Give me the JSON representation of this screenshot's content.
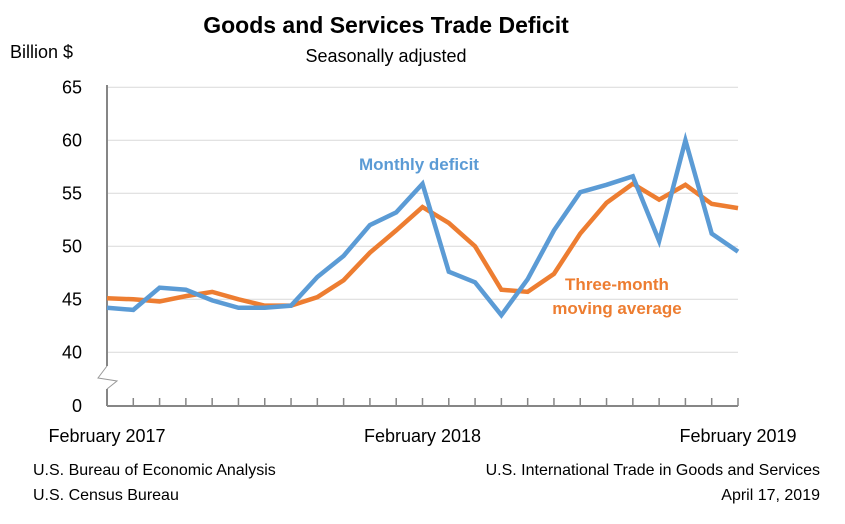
{
  "chart_data": {
    "type": "line",
    "title": "Goods and Services Trade Deficit",
    "subtitle": "Seasonally adjusted",
    "ylabel": "Billion $",
    "xlabel": "",
    "y_ticks": [
      0,
      40,
      45,
      50,
      55,
      60,
      65
    ],
    "ylim": [
      0,
      65
    ],
    "y_axis_break": "between 0 and 40",
    "x_tick_labels": [
      "February 2017",
      "February 2018",
      "February 2019"
    ],
    "x": [
      "Feb 2017",
      "Mar 2017",
      "Apr 2017",
      "May 2017",
      "Jun 2017",
      "Jul 2017",
      "Aug 2017",
      "Sep 2017",
      "Oct 2017",
      "Nov 2017",
      "Dec 2017",
      "Jan 2018",
      "Feb 2018",
      "Mar 2018",
      "Apr 2018",
      "May 2018",
      "Jun 2018",
      "Jul 2018",
      "Aug 2018",
      "Sep 2018",
      "Oct 2018",
      "Nov 2018",
      "Dec 2018",
      "Jan 2019",
      "Feb 2019"
    ],
    "grid": "horizontal",
    "series": [
      {
        "name": "Monthly deficit",
        "color": "#5B9BD5",
        "values": [
          44.2,
          44.0,
          46.1,
          45.9,
          44.9,
          44.2,
          44.2,
          44.4,
          47.1,
          49.1,
          52.0,
          53.2,
          55.9,
          47.6,
          46.6,
          43.5,
          46.9,
          51.5,
          55.1,
          55.8,
          56.6,
          50.5,
          60.0,
          51.2,
          49.5
        ]
      },
      {
        "name": "Three-month moving average",
        "label_lines": [
          "Three-month",
          "moving average"
        ],
        "color": "#ED7D31",
        "values": [
          45.1,
          45.0,
          44.8,
          45.3,
          45.7,
          45.0,
          44.4,
          44.4,
          45.2,
          46.8,
          49.4,
          51.5,
          53.7,
          52.2,
          50.0,
          45.9,
          45.7,
          47.4,
          51.2,
          54.1,
          55.9,
          54.4,
          55.8,
          54.0,
          53.6
        ]
      }
    ]
  },
  "footer": {
    "left_line1": "U.S. Bureau of Economic Analysis",
    "left_line2": "U.S. Census Bureau",
    "right_line1": "U.S. International Trade in Goods and Services",
    "right_line2": "April 17, 2019"
  }
}
